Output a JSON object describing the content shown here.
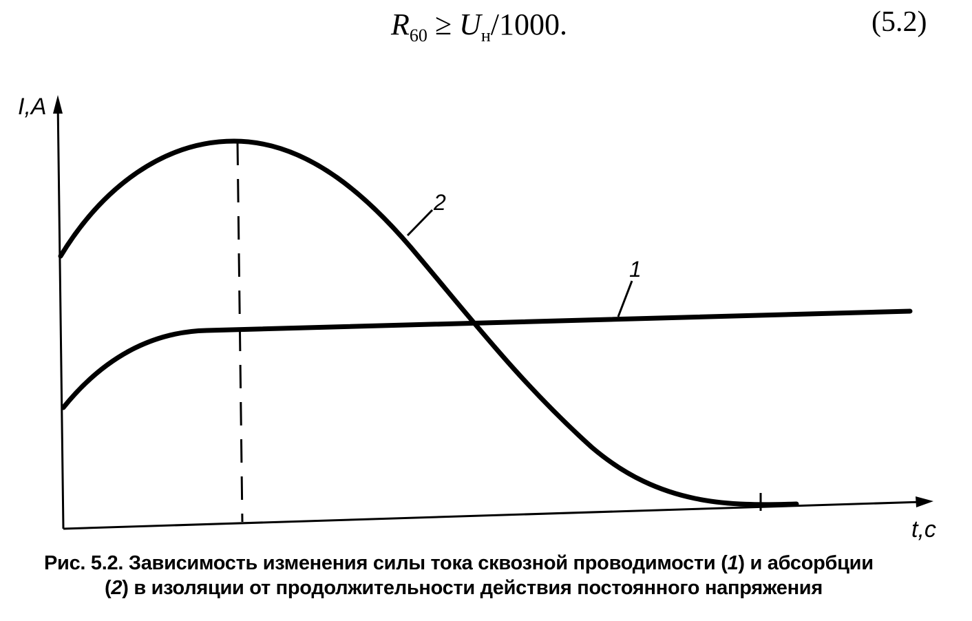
{
  "formula": {
    "R": "R",
    "R_sub": "60",
    "op": " ≥ ",
    "U": "U",
    "U_sub": "н",
    "rest": "/1000."
  },
  "equation_number": "(5.2)",
  "figure": {
    "y_axis_label": "I,A",
    "x_axis_label": "t,c",
    "curve_labels": {
      "curve1": "1",
      "curve2": "2"
    }
  },
  "caption": {
    "part1": "Рис. 5.2. Зависимость изменения силы тока сквозной проводимости (",
    "ref1": "1",
    "part2": ") и абсорбции",
    "line2_open": "(",
    "ref2": "2",
    "part3": ") в изоляции от продолжительности действия постоянного напряжения"
  }
}
